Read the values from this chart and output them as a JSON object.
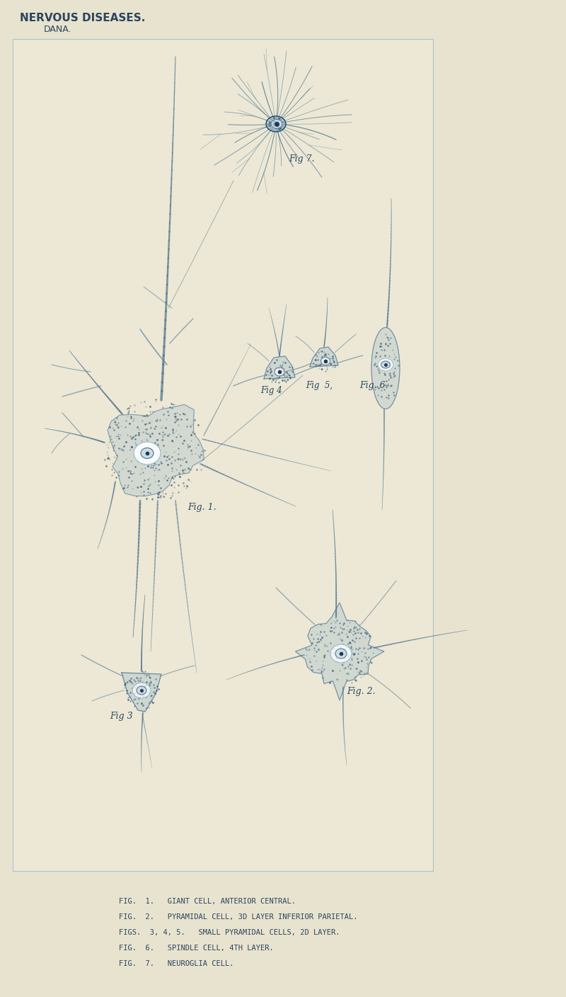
{
  "bg_color": "#e8e3ce",
  "plate_bg": "#ece8d5",
  "line_color": "#4a6e8a",
  "line_color_light": "#8aafc5",
  "line_color_dark": "#1a3a55",
  "dot_color": "#3a5a75",
  "text_color": "#2a4560",
  "title": "NERVOUS DISEASES.",
  "subtitle": "DANA.",
  "fig7_label": "Fig 7.",
  "fig1_label": "Fig. 1.",
  "fig2_label": "Fig. 2.",
  "fig3_label": "Fig 3",
  "fig4_label": "Fig 4",
  "fig5_label": "Fig  5,",
  "fig6_label": "Fig. 6.",
  "caption_lines": [
    "FIG.  1.   GIANT CELL, ANTERIOR CENTRAL.",
    "FIG.  2.   PYRAMIDAL CELL, 3D LAYER INFERIOR PARIETAL.",
    "FIGS.  3, 4, 5.   SMALL PYRAMIDAL CELLS, 2D LAYER.",
    "FIG.  6.   SPINDLE CELL, 4TH LAYER.",
    "FIG.  7.   NEUROGLIA CELL."
  ],
  "fig_width": 8.0,
  "fig_height": 14.08
}
